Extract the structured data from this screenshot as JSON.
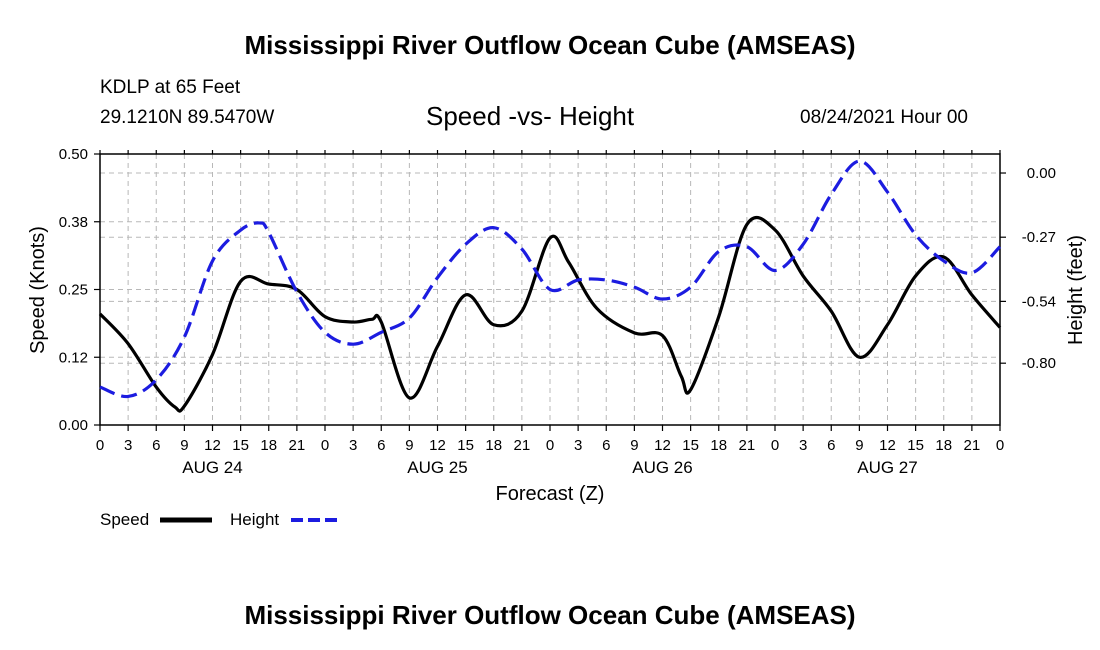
{
  "header": {
    "title": "Mississippi River Outflow Ocean Cube (AMSEAS)",
    "station": "KDLP at 65 Feet",
    "coords": "29.1210N  89.5470W",
    "subtitle": "Speed -vs- Height",
    "datestamp": "08/24/2021 Hour 00"
  },
  "footer": {
    "title": "Mississippi River Outflow Ocean Cube (AMSEAS)"
  },
  "legend": {
    "speed_label": "Speed",
    "height_label": "Height"
  },
  "chart_data": {
    "type": "line",
    "title": "Speed -vs- Height",
    "xlabel": "Forecast (Z)",
    "ylabel": "Speed (Knots)",
    "y2label": "Height (feet)",
    "xlim": [
      0,
      96
    ],
    "ylim": [
      0,
      0.5
    ],
    "y2lim": [
      -1.06,
      0.08
    ],
    "x_tick_step_hours": 3,
    "x_tick_labels": [
      "0",
      "3",
      "6",
      "9",
      "12",
      "15",
      "18",
      "21",
      "0",
      "3",
      "6",
      "9",
      "12",
      "15",
      "18",
      "21",
      "0",
      "3",
      "6",
      "9",
      "12",
      "15",
      "18",
      "21",
      "0",
      "3",
      "6",
      "9",
      "12",
      "15",
      "18",
      "21",
      "0"
    ],
    "y_ticks": [
      0.0,
      0.125,
      0.25,
      0.375,
      0.5
    ],
    "y_tick_labels": [
      "0.00",
      "0.12",
      "0.25",
      "0.38",
      "0.50"
    ],
    "y2_ticks": [
      0.0,
      -0.27,
      -0.54,
      -0.8
    ],
    "y2_tick_labels": [
      "0.00",
      "-0.27",
      "-0.54",
      "-0.80"
    ],
    "day_labels": [
      {
        "hour": 12,
        "label": "AUG 24"
      },
      {
        "hour": 36,
        "label": "AUG 25"
      },
      {
        "hour": 60,
        "label": "AUG 26"
      },
      {
        "hour": 84,
        "label": "AUG 27"
      }
    ],
    "grid": true,
    "series": [
      {
        "name": "Speed",
        "axis": "left",
        "color": "#000000",
        "dash": "solid",
        "x": [
          0,
          3,
          6,
          8,
          9,
          12,
          15,
          18,
          21,
          24,
          27,
          29,
          30,
          33,
          36,
          39,
          42,
          45,
          48,
          50,
          53,
          57,
          60,
          62,
          63,
          66,
          69,
          72,
          75,
          78,
          81,
          84,
          87,
          90,
          93,
          96
        ],
        "y": [
          0.205,
          0.15,
          0.07,
          0.033,
          0.035,
          0.13,
          0.265,
          0.26,
          0.25,
          0.2,
          0.19,
          0.195,
          0.19,
          0.05,
          0.145,
          0.24,
          0.185,
          0.21,
          0.345,
          0.3,
          0.215,
          0.17,
          0.165,
          0.09,
          0.065,
          0.2,
          0.37,
          0.36,
          0.275,
          0.21,
          0.125,
          0.185,
          0.275,
          0.31,
          0.24,
          0.18
        ]
      },
      {
        "name": "Height",
        "axis": "right",
        "color": "#1c1ce0",
        "dash": "dashed",
        "x": [
          0,
          3,
          6,
          9,
          12,
          15,
          17,
          18,
          21,
          24,
          27,
          30,
          33,
          36,
          39,
          42,
          45,
          48,
          51,
          54,
          57,
          60,
          63,
          66,
          69,
          72,
          75,
          78,
          81,
          84,
          87,
          90,
          93,
          96
        ],
        "y": [
          -0.9,
          -0.94,
          -0.87,
          -0.69,
          -0.37,
          -0.24,
          -0.21,
          -0.25,
          -0.5,
          -0.67,
          -0.72,
          -0.67,
          -0.61,
          -0.44,
          -0.3,
          -0.23,
          -0.32,
          -0.49,
          -0.45,
          -0.45,
          -0.48,
          -0.53,
          -0.48,
          -0.33,
          -0.31,
          -0.41,
          -0.3,
          -0.09,
          0.05,
          -0.08,
          -0.26,
          -0.37,
          -0.42,
          -0.31
        ]
      }
    ]
  }
}
